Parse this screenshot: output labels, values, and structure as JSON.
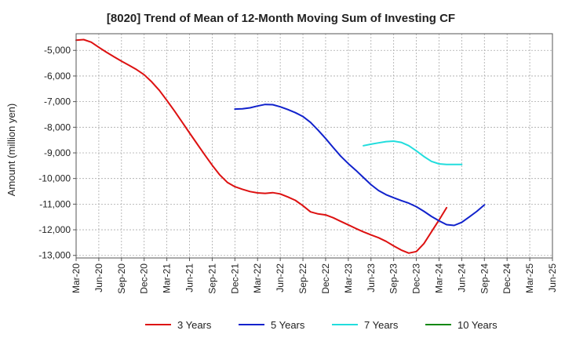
{
  "chart_data": {
    "type": "line",
    "title": "[8020]  Trend of Mean of 12-Month Moving Sum of Investing CF",
    "xlabel": "",
    "ylabel": "Amount (million yen)",
    "ylim": [
      -13100,
      -4350
    ],
    "yticks": [
      -5000,
      -6000,
      -7000,
      -8000,
      -9000,
      -10000,
      -11000,
      -12000,
      -13000
    ],
    "ytick_labels": [
      "-5,000",
      "-6,000",
      "-7,000",
      "-8,000",
      "-9,000",
      "-10,000",
      "-11,000",
      "-12,000",
      "-13,000"
    ],
    "x_categories": [
      "Mar-20",
      "Jun-20",
      "Sep-20",
      "Dec-20",
      "Mar-21",
      "Jun-21",
      "Sep-21",
      "Dec-21",
      "Mar-22",
      "Jun-22",
      "Sep-22",
      "Dec-22",
      "Mar-23",
      "Jun-23",
      "Sep-23",
      "Dec-23",
      "Mar-24",
      "Jun-24",
      "Sep-24",
      "Dec-24",
      "Mar-25",
      "Jun-25"
    ],
    "grid": true,
    "legend_position": "bottom",
    "series": [
      {
        "name": "3 Years",
        "color": "#dd1111",
        "start_index": 0,
        "values": [
          -4600,
          -4580,
          -4680,
          -4880,
          -5070,
          -5250,
          -5420,
          -5580,
          -5750,
          -5950,
          -6230,
          -6560,
          -6950,
          -7360,
          -7790,
          -8220,
          -8650,
          -9070,
          -9480,
          -9860,
          -10150,
          -10320,
          -10420,
          -10510,
          -10560,
          -10580,
          -10550,
          -10600,
          -10720,
          -10850,
          -11060,
          -11300,
          -11380,
          -11420,
          -11530,
          -11670,
          -11810,
          -11950,
          -12080,
          -12200,
          -12310,
          -12450,
          -12630,
          -12790,
          -12910,
          -12850,
          -12540,
          -12080,
          -11620,
          -11140
        ]
      },
      {
        "name": "5 Years",
        "color": "#1122cc",
        "start_index": 21,
        "values": [
          -7290,
          -7280,
          -7240,
          -7170,
          -7110,
          -7120,
          -7200,
          -7310,
          -7430,
          -7580,
          -7810,
          -8110,
          -8440,
          -8790,
          -9130,
          -9420,
          -9680,
          -9960,
          -10240,
          -10470,
          -10630,
          -10750,
          -10860,
          -10960,
          -11100,
          -11280,
          -11480,
          -11650,
          -11800,
          -11830,
          -11710,
          -11500,
          -11280,
          -11030
        ]
      },
      {
        "name": "7 Years",
        "color": "#22dddd",
        "start_index": 38,
        "values": [
          -8720,
          -8660,
          -8610,
          -8560,
          -8540,
          -8590,
          -8720,
          -8920,
          -9140,
          -9330,
          -9430,
          -9450,
          -9450,
          -9450
        ]
      },
      {
        "name": "10 Years",
        "color": "#118811",
        "start_index": 0,
        "values": []
      }
    ]
  }
}
